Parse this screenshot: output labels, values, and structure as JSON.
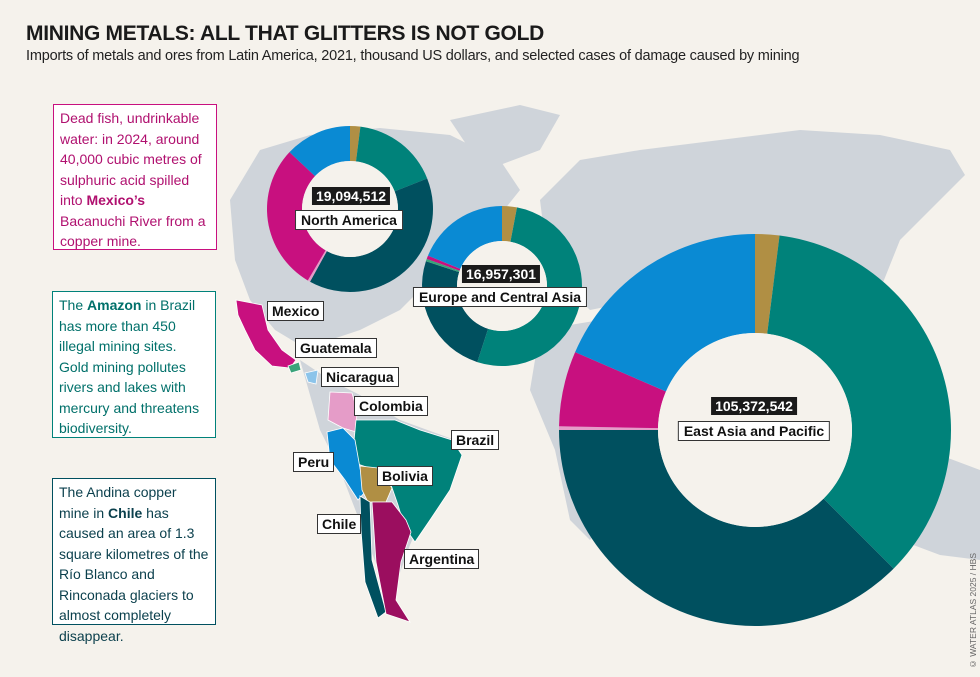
{
  "title": "MINING METALS: ALL THAT GLITTERS IS NOT GOLD",
  "subtitle": "Imports of metals and ores from Latin America, 2021, thousand US dollars, and selected cases of damage caused by mining",
  "credit": "© WATER ATLAS 2025 / HBS",
  "colors": {
    "Bolivia": "#b08f44",
    "Brazil": "#00827a",
    "Chile": "#00505f",
    "Colombia": "#e59cc8",
    "Mexico": "#c8107f",
    "Peru": "#0a8ad3",
    "Guatemala": "#3aa37a",
    "Nicaragua": "#8cc4ea",
    "Argentina": "#9b0e5f"
  },
  "notes": {
    "mexico": {
      "before": "Dead fish, undrinkable water: in 2024, around 40,000 cubic metres of sulphuric acid spilled into ",
      "bold": "Mexico’s",
      "after": " Bacanuchi River from a copper mine."
    },
    "brazil": {
      "before": "The ",
      "bold": "Amazon",
      "after": " in Brazil has more than 450 illegal mining sites. Gold mining pollutes rivers and lakes with mercury and threatens biodiversity."
    },
    "chile": {
      "before": "The Andina copper mine in ",
      "bold": "Chile",
      "after": " has caused an area of 1.3 square kilometres of the Río Blanco and Rinconada glaciers to almost completely disappear."
    }
  },
  "countries": [
    "Mexico",
    "Guatemala",
    "Nicaragua",
    "Colombia",
    "Brazil",
    "Peru",
    "Bolivia",
    "Chile",
    "Argentina"
  ],
  "chart_data": [
    {
      "type": "pie",
      "region": "North America",
      "total": "19,094,512",
      "unit": "thousand US dollars",
      "segments": [
        {
          "country": "Bolivia",
          "share": 2
        },
        {
          "country": "Brazil",
          "share": 17
        },
        {
          "country": "Chile",
          "share": 39
        },
        {
          "country": "Colombia",
          "share": 0.5
        },
        {
          "country": "Mexico",
          "share": 28.5
        },
        {
          "country": "Peru",
          "share": 13
        }
      ]
    },
    {
      "type": "pie",
      "region": "Europe and Central Asia",
      "total": "16,957,301",
      "unit": "thousand US dollars",
      "segments": [
        {
          "country": "Bolivia",
          "share": 3
        },
        {
          "country": "Brazil",
          "share": 52
        },
        {
          "country": "Chile",
          "share": 25
        },
        {
          "country": "Guatemala",
          "share": 0.5
        },
        {
          "country": "Mexico",
          "share": 0.7
        },
        {
          "country": "Peru",
          "share": 18.8
        }
      ]
    },
    {
      "type": "pie",
      "region": "East Asia and Pacific",
      "total": "105,372,542",
      "unit": "thousand US dollars",
      "segments": [
        {
          "country": "Bolivia",
          "share": 2
        },
        {
          "country": "Brazil",
          "share": 35.5
        },
        {
          "country": "Chile",
          "share": 37.5
        },
        {
          "country": "Colombia",
          "share": 0.3
        },
        {
          "country": "Mexico",
          "share": 6.2
        },
        {
          "country": "Peru",
          "share": 18.5
        }
      ]
    }
  ]
}
